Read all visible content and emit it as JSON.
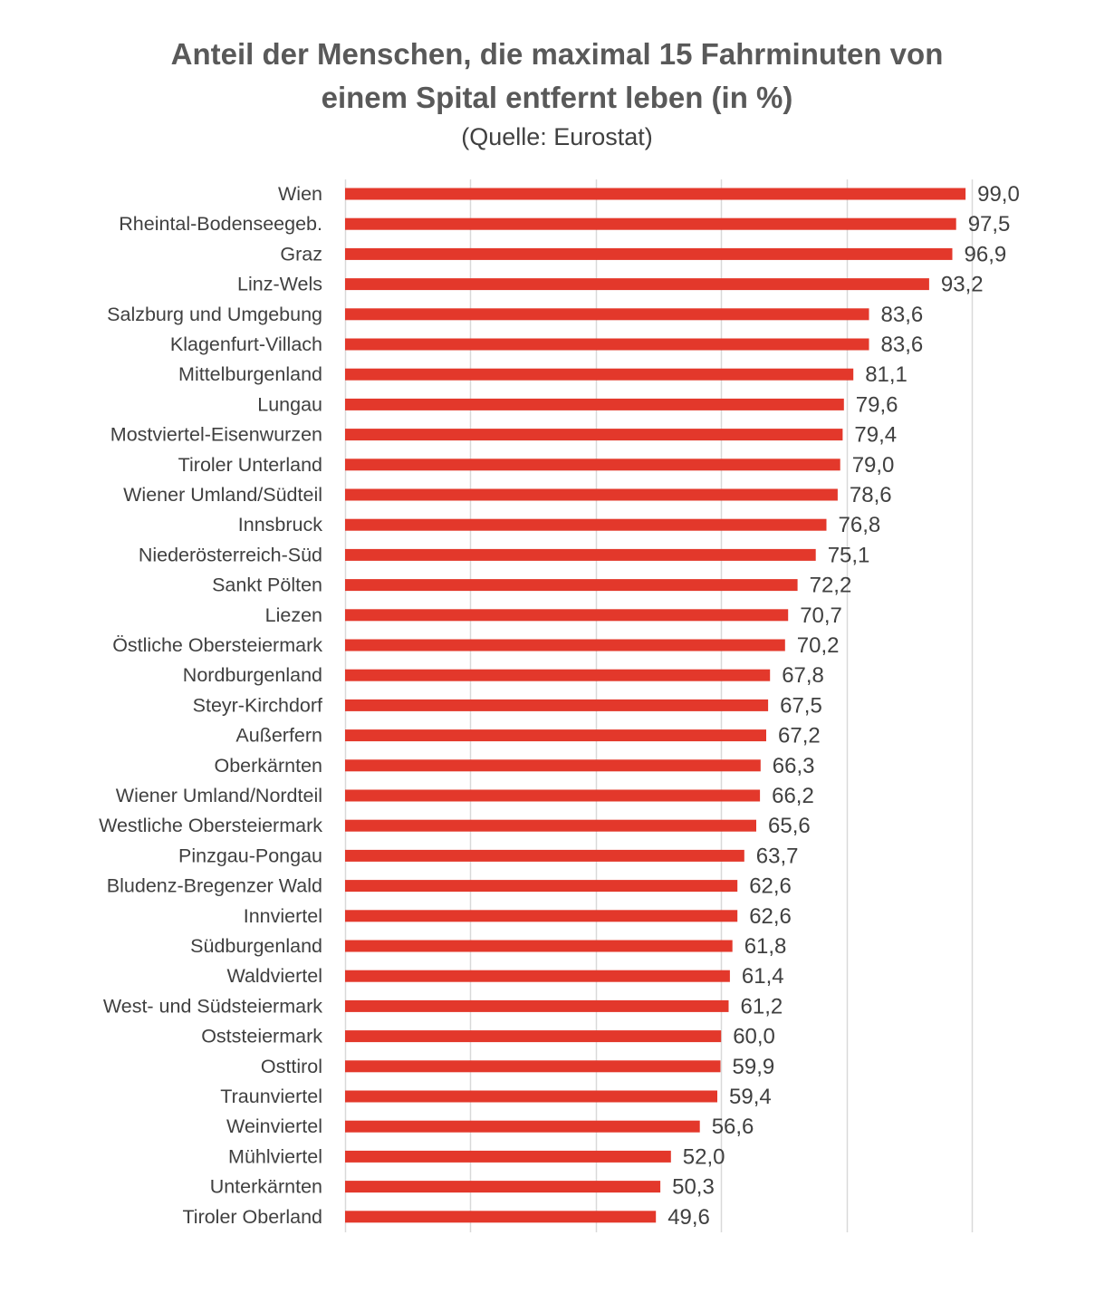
{
  "chart_data": {
    "type": "bar",
    "orientation": "horizontal",
    "title": "Anteil der Menschen, die maximal 15 Fahrminuten von einem Spital entfernt leben (in %)",
    "subtitle": "(Quelle: Eurostat)",
    "categories": [
      "Wien",
      "Rheintal-Bodenseegeb.",
      "Graz",
      "Linz-Wels",
      "Salzburg und Umgebung",
      "Klagenfurt-Villach",
      "Mittelburgenland",
      "Lungau",
      "Mostviertel-Eisenwurzen",
      "Tiroler Unterland",
      "Wiener Umland/Südteil",
      "Innsbruck",
      "Niederösterreich-Süd",
      "Sankt Pölten",
      "Liezen",
      "Östliche Obersteiermark",
      "Nordburgenland",
      "Steyr-Kirchdorf",
      "Außerfern",
      "Oberkärnten",
      "Wiener Umland/Nordteil",
      "Westliche Obersteiermark",
      "Pinzgau-Pongau",
      "Bludenz-Bregenzer Wald",
      "Innviertel",
      "Südburgenland",
      "Waldviertel",
      "West- und Südsteiermark",
      "Oststeiermark",
      "Osttirol",
      "Traunviertel",
      "Weinviertel",
      "Mühlviertel",
      "Unterkärnten",
      "Tiroler Oberland"
    ],
    "values": [
      99.0,
      97.5,
      96.9,
      93.2,
      83.6,
      83.6,
      81.1,
      79.6,
      79.4,
      79.0,
      78.6,
      76.8,
      75.1,
      72.2,
      70.7,
      70.2,
      67.8,
      67.5,
      67.2,
      66.3,
      66.2,
      65.6,
      63.7,
      62.6,
      62.6,
      61.8,
      61.4,
      61.2,
      60.0,
      59.9,
      59.4,
      56.6,
      52.0,
      50.3,
      49.6
    ],
    "value_labels": [
      "99,0",
      "97,5",
      "96,9",
      "93,2",
      "83,6",
      "83,6",
      "81,1",
      "79,6",
      "79,4",
      "79,0",
      "78,6",
      "76,8",
      "75,1",
      "72,2",
      "70,7",
      "70,2",
      "67,8",
      "67,5",
      "67,2",
      "66,3",
      "66,2",
      "65,6",
      "63,7",
      "62,6",
      "62,6",
      "61,8",
      "61,4",
      "61,2",
      "60,0",
      "59,9",
      "59,4",
      "56,6",
      "52,0",
      "50,3",
      "49,6"
    ],
    "xlim": [
      0,
      100
    ],
    "grid_step": 20,
    "grid": true,
    "show_x_tick_labels": false,
    "legend": "none",
    "colors": {
      "bar": "#E3382B",
      "grid": "#d9d9d9",
      "text": "#404040",
      "title": "#595959"
    }
  }
}
